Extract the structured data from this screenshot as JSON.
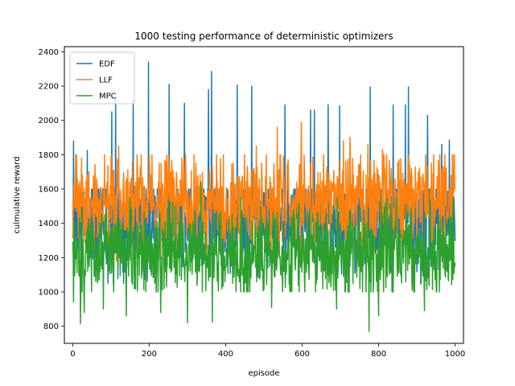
{
  "chart_data": {
    "type": "line",
    "title": "1000 testing performance of deterministic optimizers",
    "xlabel": "episode",
    "ylabel": "culmulative reward",
    "xlim": [
      -22,
      1022
    ],
    "ylim": [
      700,
      2430
    ],
    "xticks": [
      0,
      200,
      400,
      600,
      800,
      1000
    ],
    "yticks": [
      800,
      1000,
      1200,
      1400,
      1600,
      1800,
      2000,
      2200,
      2400
    ],
    "grid": false,
    "legend_position": "top-left",
    "episodes": 1000,
    "series": [
      {
        "name": "EDF",
        "color": "#1f77b4",
        "mean": 1420,
        "std": 150,
        "min": 1050,
        "max": 1600,
        "seed": 11,
        "spikes": [
          {
            "x": 2,
            "y": 1880
          },
          {
            "x": 38,
            "y": 1825
          },
          {
            "x": 102,
            "y": 2050
          },
          {
            "x": 112,
            "y": 2130
          },
          {
            "x": 158,
            "y": 2120
          },
          {
            "x": 198,
            "y": 2340
          },
          {
            "x": 252,
            "y": 2210
          },
          {
            "x": 292,
            "y": 2100
          },
          {
            "x": 355,
            "y": 2180
          },
          {
            "x": 363,
            "y": 2285
          },
          {
            "x": 430,
            "y": 2205
          },
          {
            "x": 468,
            "y": 2200
          },
          {
            "x": 555,
            "y": 2090
          },
          {
            "x": 622,
            "y": 2060
          },
          {
            "x": 632,
            "y": 2060
          },
          {
            "x": 668,
            "y": 2090
          },
          {
            "x": 698,
            "y": 2085
          },
          {
            "x": 778,
            "y": 2195
          },
          {
            "x": 838,
            "y": 2090
          },
          {
            "x": 870,
            "y": 2090
          },
          {
            "x": 878,
            "y": 2195
          },
          {
            "x": 928,
            "y": 2030
          },
          {
            "x": 965,
            "y": 1860
          },
          {
            "x": 985,
            "y": 1885
          }
        ]
      },
      {
        "name": "LLF",
        "color": "#ff7f0e",
        "mean": 1530,
        "std": 140,
        "min": 1180,
        "max": 1800,
        "seed": 23,
        "spikes": [
          {
            "x": 120,
            "y": 1850
          },
          {
            "x": 480,
            "y": 1850
          },
          {
            "x": 535,
            "y": 1960
          },
          {
            "x": 598,
            "y": 1990
          },
          {
            "x": 708,
            "y": 1880
          },
          {
            "x": 725,
            "y": 1900
          },
          {
            "x": 772,
            "y": 1860
          },
          {
            "x": 810,
            "y": 1830
          }
        ]
      },
      {
        "name": "MPC",
        "color": "#2ca02c",
        "mean": 1230,
        "std": 130,
        "min": 1000,
        "max": 1550,
        "seed": 37,
        "spikes": [
          {
            "x": 2,
            "y": 940
          },
          {
            "x": 20,
            "y": 815
          },
          {
            "x": 30,
            "y": 880
          },
          {
            "x": 80,
            "y": 900
          },
          {
            "x": 140,
            "y": 860
          },
          {
            "x": 230,
            "y": 880
          },
          {
            "x": 300,
            "y": 820
          },
          {
            "x": 335,
            "y": 1640
          },
          {
            "x": 365,
            "y": 825
          },
          {
            "x": 520,
            "y": 910
          },
          {
            "x": 690,
            "y": 900
          },
          {
            "x": 775,
            "y": 770
          },
          {
            "x": 800,
            "y": 860
          },
          {
            "x": 920,
            "y": 890
          },
          {
            "x": 995,
            "y": 1350
          }
        ]
      }
    ]
  }
}
